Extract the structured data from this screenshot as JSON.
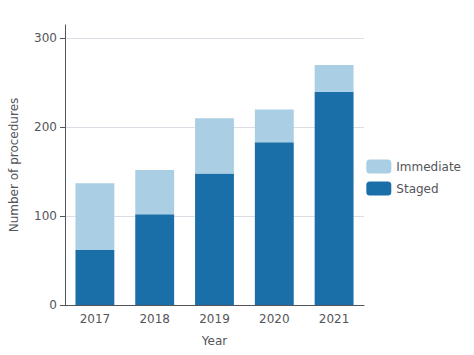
{
  "chart_data": {
    "type": "bar",
    "stacked": true,
    "xlabel": "Year",
    "ylabel": "Number of procedures",
    "categories": [
      "2017",
      "2018",
      "2019",
      "2020",
      "2021"
    ],
    "series": [
      {
        "name": "Staged",
        "color": "#1b6fa8",
        "values": [
          62,
          102,
          148,
          183,
          240
        ]
      },
      {
        "name": "Immediate",
        "color": "#aacfe4",
        "values": [
          75,
          50,
          62,
          37,
          30
        ]
      }
    ],
    "ylim": [
      0,
      315
    ],
    "yticks": [
      0,
      100,
      200,
      300
    ],
    "grid": true,
    "legend": "right"
  }
}
